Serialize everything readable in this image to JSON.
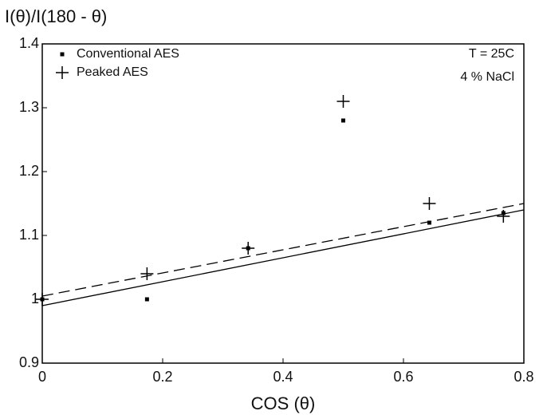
{
  "chart_data": {
    "type": "scatter",
    "title": "I(θ)/I(180 - θ)",
    "x_label": "COS (θ)",
    "annotations": [
      "T = 25C",
      "4 % NaCl"
    ],
    "series": [
      {
        "name": "Conventional AES",
        "marker": "square",
        "color": "#000000",
        "x": [
          0,
          0.174,
          0.342,
          0.5,
          0.643,
          0.766
        ],
        "values": [
          1.0,
          1.0,
          1.08,
          1.28,
          1.12,
          1.135
        ]
      },
      {
        "name": "Peaked AES",
        "marker": "plus",
        "color": "#000000",
        "x": [
          0,
          0.174,
          0.342,
          0.5,
          0.643,
          0.766
        ],
        "values": [
          1.0,
          1.04,
          1.08,
          1.31,
          1.15,
          1.13
        ]
      }
    ],
    "lines": [
      {
        "style": "solid",
        "x": [
          0,
          0.8
        ],
        "values": [
          0.99,
          1.14
        ]
      },
      {
        "style": "dashed",
        "x": [
          0,
          0.8
        ],
        "values": [
          1.005,
          1.15
        ]
      }
    ],
    "xlim": [
      0,
      0.8
    ],
    "xticks": [
      0,
      0.2,
      0.4,
      0.6,
      0.8
    ],
    "ylim": [
      0.9,
      1.4
    ],
    "yticks": [
      0.9,
      1,
      1.1,
      1.2,
      1.3,
      1.4
    ],
    "legend": "upper left"
  }
}
